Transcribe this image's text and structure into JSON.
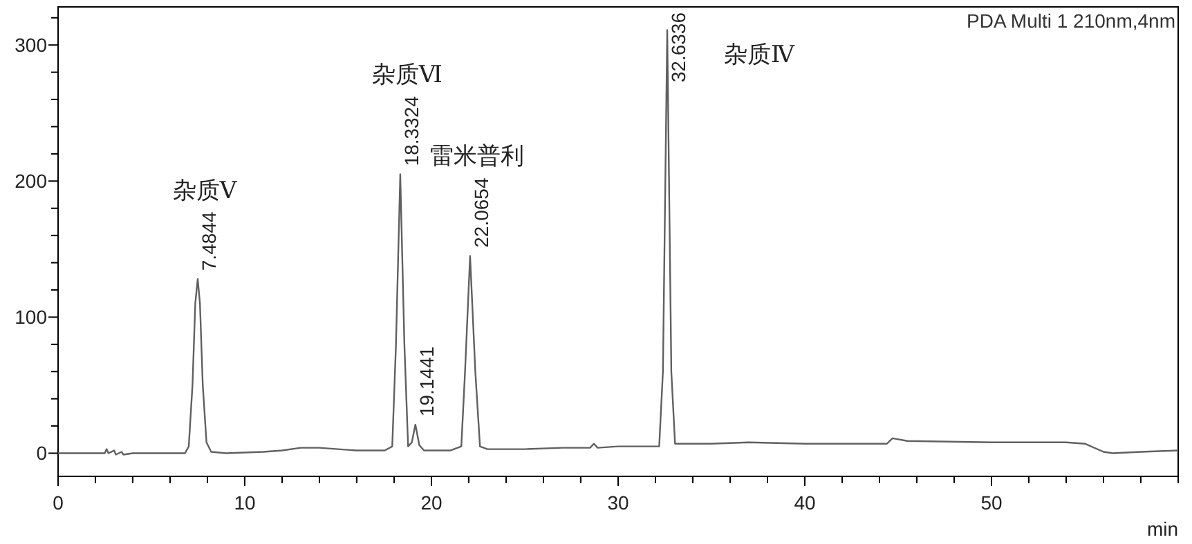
{
  "chart_data": {
    "type": "line",
    "xlabel": "min",
    "xlim": [
      0,
      60
    ],
    "ylim": [
      -17,
      328
    ],
    "grid": false,
    "marker": "none",
    "line_style": "solid",
    "xticks": [
      0,
      {
        "value": 2,
        "label": null
      },
      {
        "value": 4,
        "label": null
      },
      {
        "value": 6,
        "label": null
      },
      {
        "value": 8,
        "label": null
      },
      10,
      {
        "value": 12,
        "label": null
      },
      {
        "value": 14,
        "label": null
      },
      {
        "value": 16,
        "label": null
      },
      {
        "value": 18,
        "label": null
      },
      20,
      {
        "value": 22,
        "label": null
      },
      {
        "value": 24,
        "label": null
      },
      {
        "value": 26,
        "label": null
      },
      {
        "value": 28,
        "label": null
      },
      30,
      {
        "value": 32,
        "label": null
      },
      {
        "value": 34,
        "label": null
      },
      {
        "value": 36,
        "label": null
      },
      {
        "value": 38,
        "label": null
      },
      40,
      {
        "value": 42,
        "label": null
      },
      {
        "value": 44,
        "label": null
      },
      {
        "value": 46,
        "label": null
      },
      {
        "value": 48,
        "label": null
      },
      50,
      {
        "value": 52,
        "label": null
      },
      {
        "value": 54,
        "label": null
      },
      {
        "value": 56,
        "label": null
      },
      {
        "value": 58,
        "label": null
      },
      {
        "value": 60,
        "label": null
      }
    ],
    "yticks": [
      0,
      {
        "value": 20,
        "label": null
      },
      {
        "value": 40,
        "label": null
      },
      {
        "value": 60,
        "label": null
      },
      {
        "value": 80,
        "label": null
      },
      100,
      {
        "value": 120,
        "label": null
      },
      {
        "value": 140,
        "label": null
      },
      {
        "value": 160,
        "label": null
      },
      {
        "value": 180,
        "label": null
      },
      200,
      {
        "value": 220,
        "label": null
      },
      {
        "value": 240,
        "label": null
      },
      {
        "value": 260,
        "label": null
      },
      {
        "value": 280,
        "label": null
      },
      300,
      {
        "value": 320,
        "label": null
      }
    ],
    "series": [
      {
        "color": "#606060",
        "x": [
          0,
          2,
          2.5,
          2.6,
          2.7,
          3.0,
          3.1,
          3.4,
          3.5,
          4,
          6,
          6.8,
          7.0,
          7.2,
          7.35,
          7.48,
          7.6,
          7.75,
          7.95,
          8.2,
          9,
          11,
          12,
          13,
          14,
          15,
          16,
          17.5,
          17.9,
          18.1,
          18.33,
          18.55,
          18.75,
          18.95,
          19.14,
          19.35,
          19.6,
          21,
          21.6,
          21.8,
          22.07,
          22.35,
          22.6,
          23,
          25,
          27,
          28.5,
          28.7,
          28.9,
          30,
          32.2,
          32.4,
          32.63,
          32.85,
          33.05,
          35,
          37,
          40,
          44.4,
          44.7,
          45.5,
          50,
          54,
          55,
          56,
          56.5,
          58,
          60
        ],
        "values": [
          0,
          0,
          0,
          3,
          0,
          2,
          -1,
          1,
          -1,
          0,
          0,
          0,
          5,
          50,
          110,
          128,
          110,
          50,
          8,
          1,
          0,
          1,
          2,
          4,
          4,
          3,
          2,
          2,
          5,
          80,
          205,
          80,
          5,
          8,
          21,
          6,
          2,
          2,
          5,
          60,
          145,
          60,
          5,
          3,
          3,
          4,
          4,
          7,
          4,
          5,
          5,
          60,
          311,
          60,
          7,
          7,
          8,
          7,
          7,
          11,
          9,
          8,
          8,
          7,
          1,
          0,
          1,
          2
        ]
      }
    ],
    "annotations": [
      "PDA Multi 1 210nm,4nm",
      {
        "text": "7.4844",
        "x": 7.48,
        "y": 128
      },
      "杂质Ⅴ",
      {
        "text": "18.3324",
        "x": 18.33,
        "y": 205
      },
      "杂质Ⅵ",
      {
        "text": "19.1441",
        "x": 19.14,
        "y": 21
      },
      {
        "text": "22.0654",
        "x": 22.07,
        "y": 145
      },
      "雷米普利",
      {
        "text": "32.6336",
        "x": 32.63,
        "y": 311
      },
      "杂质Ⅳ"
    ]
  }
}
